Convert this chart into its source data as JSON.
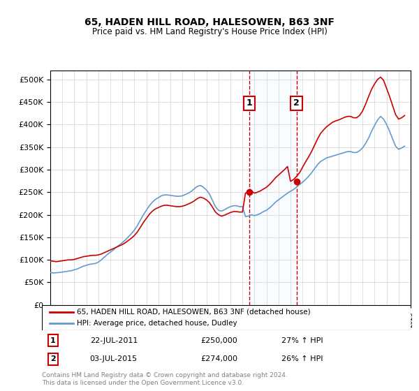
{
  "title": "65, HADEN HILL ROAD, HALESOWEN, B63 3NF",
  "subtitle": "Price paid vs. HM Land Registry's House Price Index (HPI)",
  "legend_line1": "65, HADEN HILL ROAD, HALESOWEN, B63 3NF (detached house)",
  "legend_line2": "HPI: Average price, detached house, Dudley",
  "footer": "Contains HM Land Registry data © Crown copyright and database right 2024.\nThis data is licensed under the Open Government Licence v3.0.",
  "annotation1_label": "1",
  "annotation1_date": "22-JUL-2011",
  "annotation1_price": "£250,000",
  "annotation1_hpi": "27% ↑ HPI",
  "annotation2_label": "2",
  "annotation2_date": "03-JUL-2015",
  "annotation2_price": "£274,000",
  "annotation2_hpi": "26% ↑ HPI",
  "sale1_year": 2011.55,
  "sale1_value": 250000,
  "sale2_year": 2015.5,
  "sale2_value": 274000,
  "red_color": "#cc0000",
  "blue_color": "#6699cc",
  "shade_color": "#ddeeff",
  "ylim": [
    0,
    520000
  ],
  "yticks": [
    0,
    50000,
    100000,
    150000,
    200000,
    250000,
    300000,
    350000,
    400000,
    450000,
    500000
  ],
  "hpi_data": {
    "years": [
      1995.0,
      1995.25,
      1995.5,
      1995.75,
      1996.0,
      1996.25,
      1996.5,
      1996.75,
      1997.0,
      1997.25,
      1997.5,
      1997.75,
      1998.0,
      1998.25,
      1998.5,
      1998.75,
      1999.0,
      1999.25,
      1999.5,
      1999.75,
      2000.0,
      2000.25,
      2000.5,
      2000.75,
      2001.0,
      2001.25,
      2001.5,
      2001.75,
      2002.0,
      2002.25,
      2002.5,
      2002.75,
      2003.0,
      2003.25,
      2003.5,
      2003.75,
      2004.0,
      2004.25,
      2004.5,
      2004.75,
      2005.0,
      2005.25,
      2005.5,
      2005.75,
      2006.0,
      2006.25,
      2006.5,
      2006.75,
      2007.0,
      2007.25,
      2007.5,
      2007.75,
      2008.0,
      2008.25,
      2008.5,
      2008.75,
      2009.0,
      2009.25,
      2009.5,
      2009.75,
      2010.0,
      2010.25,
      2010.5,
      2010.75,
      2011.0,
      2011.25,
      2011.5,
      2011.75,
      2012.0,
      2012.25,
      2012.5,
      2012.75,
      2013.0,
      2013.25,
      2013.5,
      2013.75,
      2014.0,
      2014.25,
      2014.5,
      2014.75,
      2015.0,
      2015.25,
      2015.5,
      2015.75,
      2016.0,
      2016.25,
      2016.5,
      2016.75,
      2017.0,
      2017.25,
      2017.5,
      2017.75,
      2018.0,
      2018.25,
      2018.5,
      2018.75,
      2019.0,
      2019.25,
      2019.5,
      2019.75,
      2020.0,
      2020.25,
      2020.5,
      2020.75,
      2021.0,
      2021.25,
      2021.5,
      2021.75,
      2022.0,
      2022.25,
      2022.5,
      2022.75,
      2023.0,
      2023.25,
      2023.5,
      2023.75,
      2024.0,
      2024.25,
      2024.5
    ],
    "values": [
      72000,
      71000,
      71500,
      72000,
      73000,
      74000,
      75000,
      76000,
      78000,
      80000,
      83000,
      86000,
      88000,
      90000,
      91000,
      92000,
      95000,
      100000,
      106000,
      112000,
      117000,
      122000,
      128000,
      133000,
      138000,
      144000,
      151000,
      158000,
      166000,
      176000,
      188000,
      200000,
      210000,
      220000,
      228000,
      234000,
      238000,
      242000,
      244000,
      244000,
      243000,
      242000,
      241000,
      241000,
      242000,
      245000,
      248000,
      252000,
      258000,
      263000,
      265000,
      261000,
      255000,
      246000,
      232000,
      218000,
      210000,
      208000,
      211000,
      215000,
      218000,
      220000,
      220000,
      218000,
      218000,
      196000,
      197000,
      200000,
      198000,
      200000,
      203000,
      207000,
      210000,
      215000,
      221000,
      228000,
      233000,
      238000,
      243000,
      248000,
      252000,
      256000,
      261000,
      267000,
      272000,
      278000,
      285000,
      293000,
      302000,
      311000,
      318000,
      322000,
      326000,
      328000,
      330000,
      332000,
      334000,
      336000,
      338000,
      340000,
      340000,
      338000,
      338000,
      342000,
      348000,
      358000,
      370000,
      385000,
      398000,
      410000,
      418000,
      412000,
      400000,
      385000,
      368000,
      352000,
      345000,
      348000,
      352000
    ]
  },
  "red_data": {
    "years": [
      1995.0,
      1995.25,
      1995.5,
      1995.75,
      1996.0,
      1996.25,
      1996.5,
      1996.75,
      1997.0,
      1997.25,
      1997.5,
      1997.75,
      1998.0,
      1998.25,
      1998.5,
      1998.75,
      1999.0,
      1999.25,
      1999.5,
      1999.75,
      2000.0,
      2000.25,
      2000.5,
      2000.75,
      2001.0,
      2001.25,
      2001.5,
      2001.75,
      2002.0,
      2002.25,
      2002.5,
      2002.75,
      2003.0,
      2003.25,
      2003.5,
      2003.75,
      2004.0,
      2004.25,
      2004.5,
      2004.75,
      2005.0,
      2005.25,
      2005.5,
      2005.75,
      2006.0,
      2006.25,
      2006.5,
      2006.75,
      2007.0,
      2007.25,
      2007.5,
      2007.75,
      2008.0,
      2008.25,
      2008.5,
      2008.75,
      2009.0,
      2009.25,
      2009.5,
      2009.75,
      2010.0,
      2010.25,
      2010.5,
      2010.75,
      2011.0,
      2011.25,
      2011.5,
      2011.75,
      2012.0,
      2012.25,
      2012.5,
      2012.75,
      2013.0,
      2013.25,
      2013.5,
      2013.75,
      2014.0,
      2014.25,
      2014.5,
      2014.75,
      2015.0,
      2015.25,
      2015.5,
      2015.75,
      2016.0,
      2016.25,
      2016.5,
      2016.75,
      2017.0,
      2017.25,
      2017.5,
      2017.75,
      2018.0,
      2018.25,
      2018.5,
      2018.75,
      2019.0,
      2019.25,
      2019.5,
      2019.75,
      2020.0,
      2020.25,
      2020.5,
      2020.75,
      2021.0,
      2021.25,
      2021.5,
      2021.75,
      2022.0,
      2022.25,
      2022.5,
      2022.75,
      2023.0,
      2023.25,
      2023.5,
      2023.75,
      2024.0,
      2024.25,
      2024.5
    ],
    "values": [
      98000,
      97000,
      96000,
      97000,
      98000,
      99000,
      100000,
      100000,
      101000,
      103000,
      105000,
      107000,
      108000,
      109000,
      110000,
      110000,
      111000,
      113000,
      116000,
      119000,
      122000,
      125000,
      128000,
      131000,
      134000,
      138000,
      143000,
      148000,
      154000,
      162000,
      172000,
      183000,
      192000,
      201000,
      208000,
      213000,
      216000,
      219000,
      221000,
      221000,
      220000,
      219000,
      218000,
      218000,
      219000,
      221000,
      224000,
      227000,
      231000,
      236000,
      239000,
      237000,
      233000,
      227000,
      217000,
      206000,
      200000,
      197000,
      199000,
      202000,
      205000,
      207000,
      207000,
      206000,
      206000,
      248000,
      250000,
      252000,
      248000,
      250000,
      253000,
      257000,
      261000,
      267000,
      274000,
      282000,
      288000,
      294000,
      300000,
      307000,
      274000,
      278000,
      285000,
      293000,
      305000,
      317000,
      328000,
      340000,
      354000,
      368000,
      380000,
      388000,
      395000,
      400000,
      405000,
      408000,
      410000,
      413000,
      416000,
      418000,
      418000,
      415000,
      415000,
      420000,
      430000,
      445000,
      462000,
      478000,
      490000,
      500000,
      505000,
      498000,
      480000,
      462000,
      442000,
      422000,
      412000,
      415000,
      420000
    ]
  }
}
